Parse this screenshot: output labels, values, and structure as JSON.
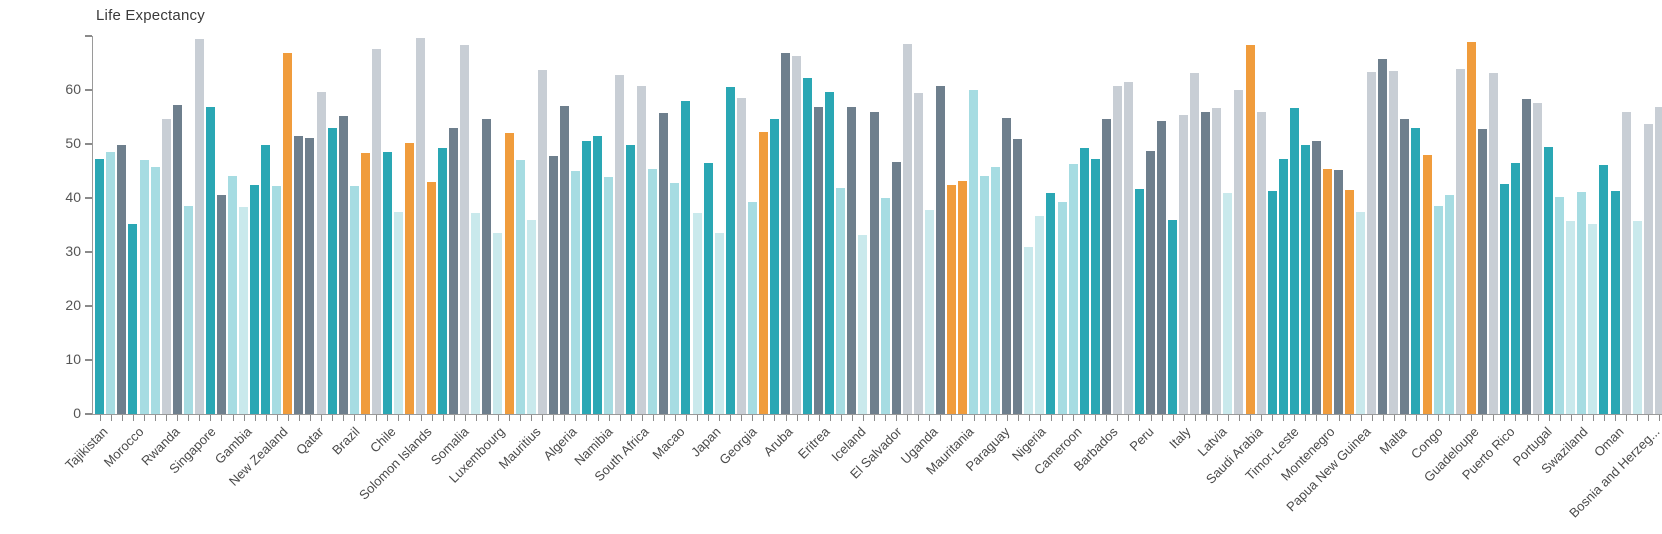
{
  "title": "Life Expectancy",
  "colors": {
    "teal": "#2AA7B4",
    "pale": "#A6DCE2",
    "xpale": "#C9E9EC",
    "gray": "#C8CED5",
    "slate": "#6E7F8D",
    "orange": "#F09C3C",
    "axis": "#9a9a9a",
    "tick": "#8a8a8a"
  },
  "chart_data": {
    "type": "bar",
    "title": "Life Expectancy",
    "xlabel": "",
    "ylabel": "",
    "ylim": [
      0,
      70
    ],
    "grid": "off",
    "legend": "none",
    "yticks": [
      0,
      10,
      20,
      30,
      40,
      50,
      60
    ],
    "ytick_marks": [
      0,
      10,
      20,
      30,
      40,
      50,
      60,
      70
    ],
    "x_axis_labels": [
      "Tajikistan",
      "Morocco",
      "Rwanda",
      "Singapore",
      "Gambia",
      "New Zealand",
      "Qatar",
      "Brazil",
      "Chile",
      "Solomon Islands",
      "Somalia",
      "Luxembourg",
      "Mauritius",
      "Algeria",
      "Namibia",
      "South Africa",
      "Macao",
      "Japan",
      "Georgia",
      "Aruba",
      "Eritrea",
      "Iceland",
      "El Salvador",
      "Uganda",
      "Mauritania",
      "Paraguay",
      "Nigeria",
      "Cameroon",
      "Barbados",
      "Peru",
      "Italy",
      "Latvia",
      "Saudi Arabia",
      "Timor-Leste",
      "Montenegro",
      "Papua New Guinea",
      "Malta",
      "Congo",
      "Guadeloupe",
      "Puerto Rico",
      "Portugal",
      "Swaziland",
      "Oman",
      "Bosnia and Herzeg..."
    ],
    "bars": [
      {
        "c": "teal",
        "v": 47.2
      },
      {
        "c": "pale",
        "v": 48.5
      },
      {
        "c": "slate",
        "v": 49.8
      },
      {
        "c": "teal",
        "v": 35.2
      },
      {
        "c": "pale",
        "v": 47.0
      },
      {
        "c": "pale",
        "v": 45.7
      },
      {
        "c": "gray",
        "v": 54.6
      },
      {
        "c": "slate",
        "v": 57.3
      },
      {
        "c": "pale",
        "v": 38.5
      },
      {
        "c": "gray",
        "v": 69.4
      },
      {
        "c": "teal",
        "v": 56.9
      },
      {
        "c": "slate",
        "v": 40.5
      },
      {
        "c": "pale",
        "v": 44.0
      },
      {
        "c": "xpale",
        "v": 38.3
      },
      {
        "c": "teal",
        "v": 42.4
      },
      {
        "c": "teal",
        "v": 49.8
      },
      {
        "c": "pale",
        "v": 42.3
      },
      {
        "c": "orange",
        "v": 66.8
      },
      {
        "c": "slate",
        "v": 51.4
      },
      {
        "c": "slate",
        "v": 51.2
      },
      {
        "c": "gray",
        "v": 59.6
      },
      {
        "c": "teal",
        "v": 52.9
      },
      {
        "c": "slate",
        "v": 55.2
      },
      {
        "c": "pale",
        "v": 42.3
      },
      {
        "c": "orange",
        "v": 48.4
      },
      {
        "c": "gray",
        "v": 67.6
      },
      {
        "c": "teal",
        "v": 48.6
      },
      {
        "c": "xpale",
        "v": 37.5
      },
      {
        "c": "orange",
        "v": 50.1
      },
      {
        "c": "gray",
        "v": 69.6
      },
      {
        "c": "orange",
        "v": 43.0
      },
      {
        "c": "teal",
        "v": 49.2
      },
      {
        "c": "slate",
        "v": 52.9
      },
      {
        "c": "gray",
        "v": 68.3
      },
      {
        "c": "xpale",
        "v": 37.2
      },
      {
        "c": "slate",
        "v": 54.7
      },
      {
        "c": "xpale",
        "v": 33.5
      },
      {
        "c": "orange",
        "v": 52.1
      },
      {
        "c": "pale",
        "v": 47.0
      },
      {
        "c": "xpale",
        "v": 36.0
      },
      {
        "c": "gray",
        "v": 63.7
      },
      {
        "c": "slate",
        "v": 47.7
      },
      {
        "c": "slate",
        "v": 57.0
      },
      {
        "c": "pale",
        "v": 45.0
      },
      {
        "c": "teal",
        "v": 50.6
      },
      {
        "c": "teal",
        "v": 51.5
      },
      {
        "c": "pale",
        "v": 43.8
      },
      {
        "c": "gray",
        "v": 62.8
      },
      {
        "c": "teal",
        "v": 49.8
      },
      {
        "c": "gray",
        "v": 60.8
      },
      {
        "c": "pale",
        "v": 45.3
      },
      {
        "c": "slate",
        "v": 55.8
      },
      {
        "c": "pale",
        "v": 42.8
      },
      {
        "c": "teal",
        "v": 57.9
      },
      {
        "c": "xpale",
        "v": 37.2
      },
      {
        "c": "teal",
        "v": 46.5
      },
      {
        "c": "xpale",
        "v": 33.5
      },
      {
        "c": "teal",
        "v": 60.6
      },
      {
        "c": "gray",
        "v": 58.6
      },
      {
        "c": "pale",
        "v": 39.3
      },
      {
        "c": "orange",
        "v": 52.3
      },
      {
        "c": "teal",
        "v": 54.7
      },
      {
        "c": "slate",
        "v": 66.9
      },
      {
        "c": "gray",
        "v": 66.3
      },
      {
        "c": "teal",
        "v": 62.3
      },
      {
        "c": "slate",
        "v": 56.9
      },
      {
        "c": "teal",
        "v": 59.6
      },
      {
        "c": "pale",
        "v": 41.9
      },
      {
        "c": "slate",
        "v": 56.9
      },
      {
        "c": "xpale",
        "v": 33.2
      },
      {
        "c": "slate",
        "v": 56.0
      },
      {
        "c": "pale",
        "v": 40.0
      },
      {
        "c": "slate",
        "v": 46.6
      },
      {
        "c": "gray",
        "v": 68.5
      },
      {
        "c": "gray",
        "v": 59.5
      },
      {
        "c": "xpale",
        "v": 37.8
      },
      {
        "c": "slate",
        "v": 60.7
      },
      {
        "c": "orange",
        "v": 42.5
      },
      {
        "c": "orange",
        "v": 43.1
      },
      {
        "c": "pale",
        "v": 60.0
      },
      {
        "c": "pale",
        "v": 44.0
      },
      {
        "c": "pale",
        "v": 45.8
      },
      {
        "c": "slate",
        "v": 54.8
      },
      {
        "c": "slate",
        "v": 51.0
      },
      {
        "c": "xpale",
        "v": 30.9
      },
      {
        "c": "xpale",
        "v": 36.6
      },
      {
        "c": "teal",
        "v": 40.9
      },
      {
        "c": "pale",
        "v": 39.3
      },
      {
        "c": "pale",
        "v": 46.3
      },
      {
        "c": "teal",
        "v": 49.2
      },
      {
        "c": "teal",
        "v": 47.2
      },
      {
        "c": "slate",
        "v": 54.6
      },
      {
        "c": "gray",
        "v": 60.7
      },
      {
        "c": "gray",
        "v": 61.4
      },
      {
        "c": "teal",
        "v": 41.6
      },
      {
        "c": "slate",
        "v": 48.7
      },
      {
        "c": "slate",
        "v": 54.3
      },
      {
        "c": "teal",
        "v": 36.0
      },
      {
        "c": "gray",
        "v": 55.4
      },
      {
        "c": "gray",
        "v": 63.2
      },
      {
        "c": "slate",
        "v": 55.9
      },
      {
        "c": "gray",
        "v": 56.6
      },
      {
        "c": "xpale",
        "v": 40.9
      },
      {
        "c": "gray",
        "v": 60.0
      },
      {
        "c": "orange",
        "v": 68.4
      },
      {
        "c": "gray",
        "v": 55.9
      },
      {
        "c": "teal",
        "v": 41.3
      },
      {
        "c": "teal",
        "v": 47.3
      },
      {
        "c": "teal",
        "v": 56.7
      },
      {
        "c": "teal",
        "v": 49.8
      },
      {
        "c": "slate",
        "v": 50.6
      },
      {
        "c": "orange",
        "v": 45.3
      },
      {
        "c": "slate",
        "v": 45.2
      },
      {
        "c": "orange",
        "v": 41.4
      },
      {
        "c": "xpale",
        "v": 37.4
      },
      {
        "c": "gray",
        "v": 63.4
      },
      {
        "c": "slate",
        "v": 65.8
      },
      {
        "c": "gray",
        "v": 63.6
      },
      {
        "c": "slate",
        "v": 54.7
      },
      {
        "c": "teal",
        "v": 52.9
      },
      {
        "c": "orange",
        "v": 48.0
      },
      {
        "c": "pale",
        "v": 38.6
      },
      {
        "c": "pale",
        "v": 40.6
      },
      {
        "c": "gray",
        "v": 63.8
      },
      {
        "c": "orange",
        "v": 68.8
      },
      {
        "c": "slate",
        "v": 52.8
      },
      {
        "c": "gray",
        "v": 63.1
      },
      {
        "c": "teal",
        "v": 42.6
      },
      {
        "c": "teal",
        "v": 46.4
      },
      {
        "c": "slate",
        "v": 58.3
      },
      {
        "c": "gray",
        "v": 57.6
      },
      {
        "c": "teal",
        "v": 49.5
      },
      {
        "c": "pale",
        "v": 40.1
      },
      {
        "c": "xpale",
        "v": 35.8
      },
      {
        "c": "pale",
        "v": 41.1
      },
      {
        "c": "xpale",
        "v": 35.1
      },
      {
        "c": "teal",
        "v": 46.2
      },
      {
        "c": "teal",
        "v": 41.3
      },
      {
        "c": "gray",
        "v": 55.9
      },
      {
        "c": "xpale",
        "v": 35.8
      },
      {
        "c": "gray",
        "v": 53.7
      },
      {
        "c": "gray",
        "v": 56.9
      }
    ]
  }
}
